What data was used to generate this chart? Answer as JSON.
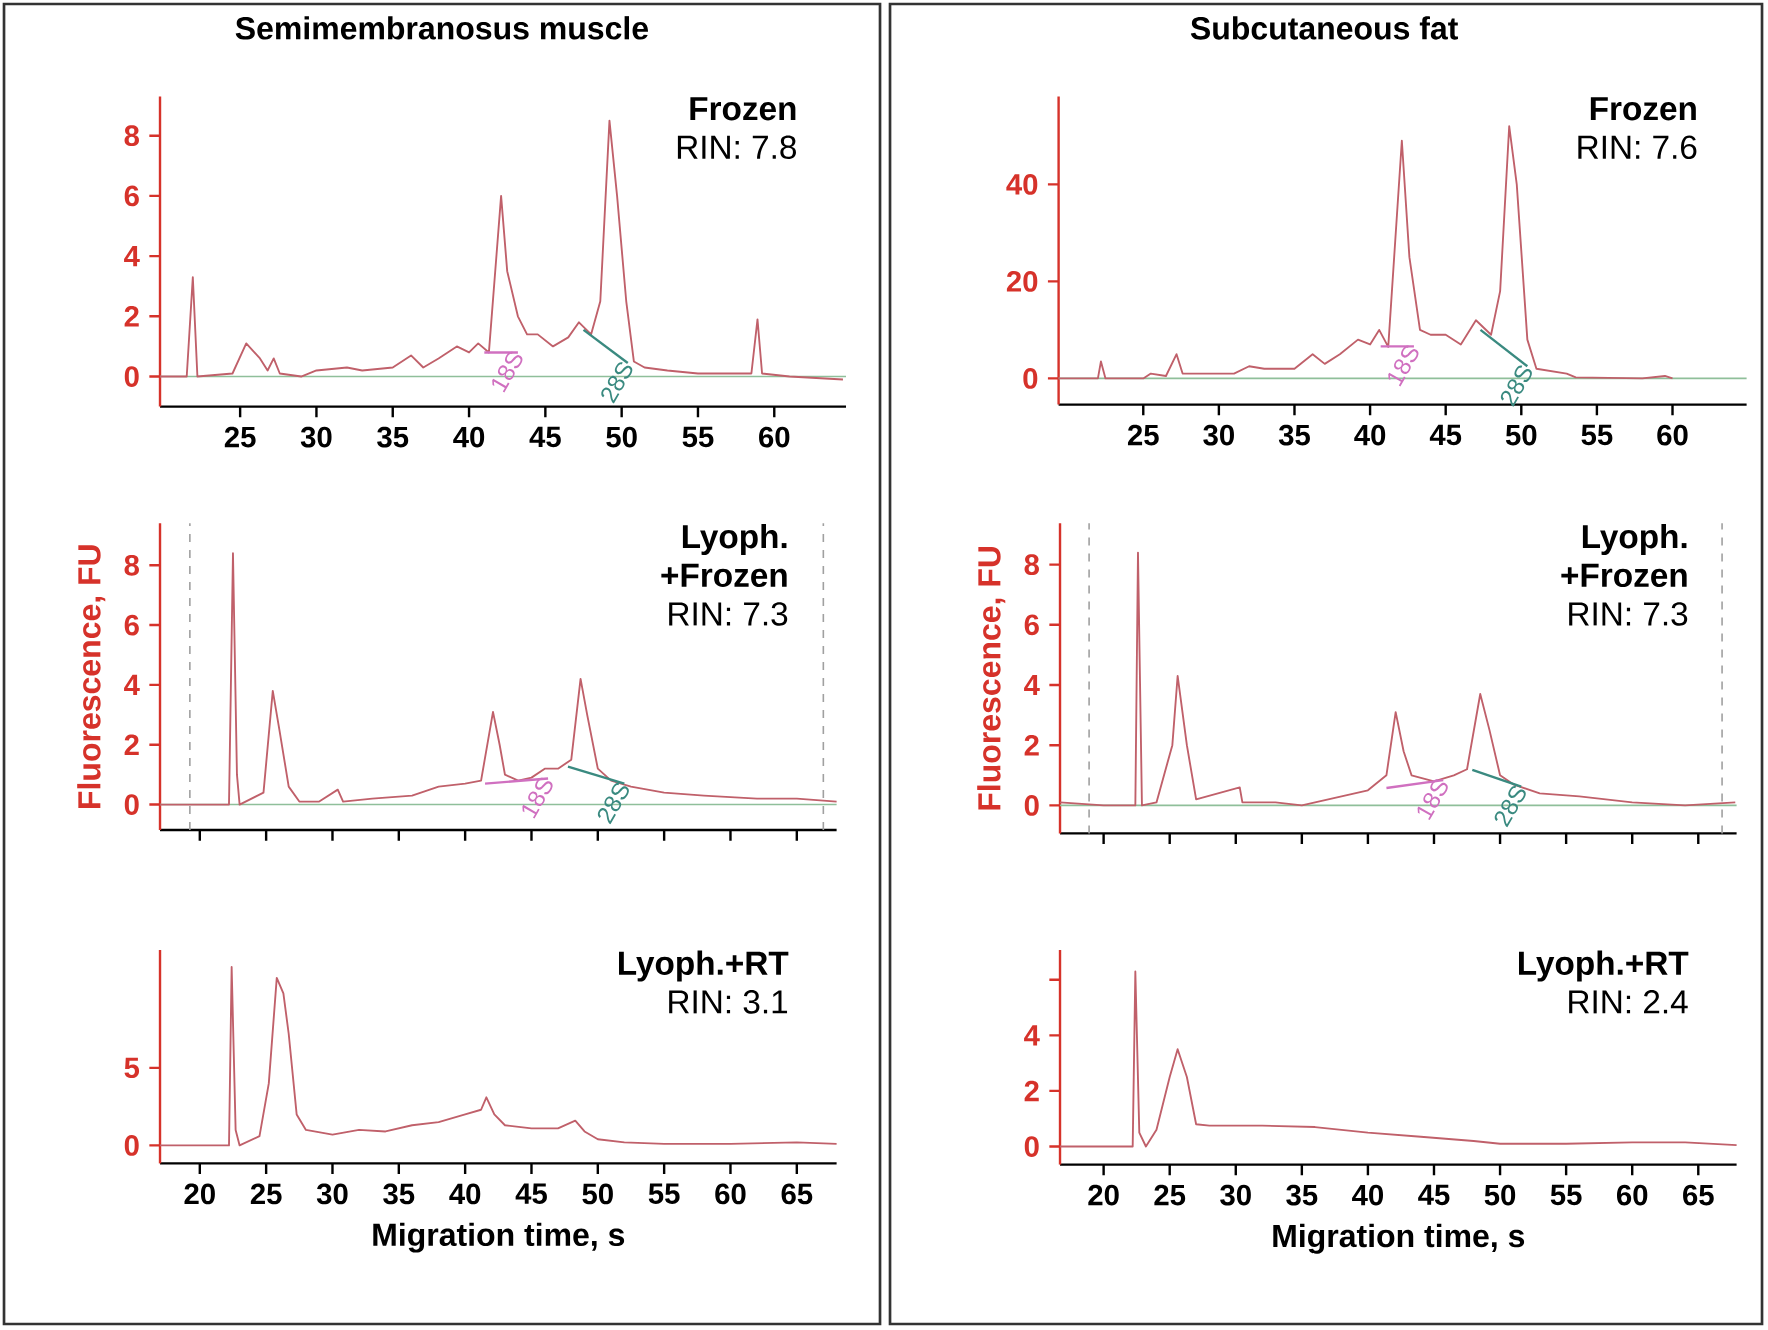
{
  "chart_data": [
    {
      "type": "line",
      "title": "Semimembranosus muscle",
      "annotations": [
        "Frozen",
        "RIN: 7.8",
        {
          "text": "18S",
          "x": 43.2,
          "y": 0.8
        },
        {
          "text": "28S",
          "x": 50.4,
          "y": 0.45
        }
      ],
      "xlim": [
        19.75,
        64.7
      ],
      "ylim": [
        -1,
        9.3
      ],
      "xticks": [
        25,
        30,
        35,
        40,
        45,
        50,
        55,
        60
      ],
      "yticks": [
        0,
        2,
        4,
        6,
        8
      ],
      "ref_lines": [
        {
          "axis": "y",
          "value": 0,
          "color": "#8fbf9a"
        }
      ],
      "series": [
        {
          "color": "#c0606a",
          "x": [
            19.75,
            21.5,
            21.9,
            22.2,
            24.5,
            25.4,
            26.3,
            26.8,
            27.2,
            27.6,
            29,
            30,
            32,
            33,
            35,
            36.2,
            37,
            38,
            39.2,
            40,
            40.6,
            41.3,
            42.1,
            42.5,
            43.2,
            43.8,
            44.5,
            45.5,
            46.5,
            47.2,
            48,
            48.6,
            49.2,
            49.7,
            50.3,
            50.8,
            51.5,
            53,
            55,
            57,
            58.5,
            58.9,
            59.2,
            61,
            64.5
          ],
          "values": [
            0,
            0,
            3.3,
            0,
            0.1,
            1.1,
            0.6,
            0.2,
            0.6,
            0.1,
            0,
            0.2,
            0.3,
            0.2,
            0.3,
            0.7,
            0.3,
            0.6,
            1.0,
            0.8,
            1.1,
            0.8,
            6.0,
            3.5,
            2.0,
            1.4,
            1.4,
            1.0,
            1.3,
            1.8,
            1.4,
            2.5,
            8.5,
            6.0,
            2.5,
            0.5,
            0.3,
            0.2,
            0.1,
            0.1,
            0.1,
            1.9,
            0.1,
            0,
            -0.1
          ]
        },
        {
          "color": "#d070c0",
          "x": [
            41,
            43.2
          ],
          "values": [
            0.8,
            0.8
          ]
        },
        {
          "color": "#3a8a80",
          "x": [
            47.5,
            50.4
          ],
          "values": [
            1.55,
            0.45
          ]
        }
      ]
    },
    {
      "type": "line",
      "title": "Subcutaneous fat",
      "annotations": [
        "Frozen",
        "RIN: 7.6",
        {
          "text": "18S",
          "x": 42.9,
          "y": 6.6
        },
        {
          "text": "28S",
          "x": 50.4,
          "y": 2.5
        }
      ],
      "xlim": [
        19.4,
        64.9
      ],
      "ylim": [
        -5.4,
        58.1
      ],
      "xticks": [
        25,
        30,
        35,
        40,
        45,
        50,
        55,
        60
      ],
      "yticks": [
        0,
        20,
        40
      ],
      "ref_lines": [
        {
          "axis": "y",
          "value": 0,
          "color": "#8fbf9a"
        }
      ],
      "series": [
        {
          "color": "#c0606a",
          "x": [
            19.4,
            22,
            22.2,
            22.5,
            25,
            25.5,
            26.5,
            27.2,
            27.6,
            29,
            31,
            32,
            33,
            35,
            36.2,
            37,
            38,
            39.2,
            40,
            40.6,
            41.2,
            42.1,
            42.6,
            43.3,
            44,
            45,
            46,
            47,
            48,
            48.6,
            49.2,
            49.7,
            50.4,
            51,
            53,
            53.6,
            58,
            59.5,
            60
          ],
          "values": [
            0,
            0,
            3.5,
            0,
            0,
            1,
            0.5,
            5,
            1,
            1,
            1,
            2.5,
            2,
            2,
            5,
            3,
            5,
            8,
            7,
            10,
            6.5,
            49,
            25,
            10,
            9,
            9,
            7,
            12,
            9,
            18,
            52,
            40,
            8,
            2,
            1,
            0.2,
            0,
            0.5,
            0
          ]
        },
        {
          "color": "#d070c0",
          "x": [
            40.7,
            42.9
          ],
          "values": [
            6.6,
            6.6
          ]
        },
        {
          "color": "#3a8a80",
          "x": [
            47.3,
            50.4
          ],
          "values": [
            10,
            2.5
          ]
        }
      ]
    },
    {
      "type": "line",
      "ylabel": "Fluorescence, FU",
      "annotations": [
        "Lyoph.",
        "+Frozen",
        "RIN: 7.3",
        {
          "text": "18S",
          "x": 46.25,
          "y": 0.87
        },
        {
          "text": "28S",
          "x": 52,
          "y": 0.7
        }
      ],
      "xlim": [
        17,
        68
      ],
      "ylim": [
        -0.85,
        9.4
      ],
      "xticks": [
        {
          "value": 20,
          "label": null
        },
        {
          "value": 25,
          "label": null
        },
        {
          "value": 30,
          "label": null
        },
        {
          "value": 35,
          "label": null
        },
        {
          "value": 40,
          "label": null
        },
        {
          "value": 45,
          "label": null
        },
        {
          "value": 50,
          "label": null
        },
        {
          "value": 55,
          "label": null
        },
        {
          "value": 60,
          "label": null
        },
        {
          "value": 65,
          "label": null
        }
      ],
      "yticks": [
        0,
        2,
        4,
        6,
        8
      ],
      "tick_labels": "y",
      "ref_lines": [
        {
          "axis": "y",
          "value": 0,
          "color": "#8fbf9a"
        },
        {
          "axis": "x",
          "value": 19.25,
          "color": "#a0a0a0",
          "line_style": "dashed"
        },
        {
          "axis": "x",
          "value": 67.0,
          "color": "#a0a0a0",
          "line_style": "dashed"
        }
      ],
      "series": [
        {
          "color": "#c0606a",
          "x": [
            17,
            20,
            22.2,
            22.5,
            22.8,
            23,
            24.8,
            25.5,
            26,
            26.7,
            27.5,
            29,
            30.4,
            30.8,
            33,
            36,
            38,
            40,
            41.2,
            42.1,
            42.6,
            43,
            44,
            45,
            46,
            47,
            48,
            48.7,
            49.2,
            50,
            51,
            52.5,
            55,
            58,
            62,
            65,
            68
          ],
          "values": [
            0,
            0,
            0,
            8.4,
            1,
            0,
            0.4,
            3.8,
            2.5,
            0.6,
            0.1,
            0.1,
            0.5,
            0.1,
            0.2,
            0.3,
            0.6,
            0.7,
            0.8,
            3.1,
            2.0,
            1.0,
            0.8,
            0.9,
            1.2,
            1.2,
            1.5,
            4.2,
            3.0,
            1.2,
            0.8,
            0.6,
            0.4,
            0.3,
            0.2,
            0.2,
            0.1
          ]
        },
        {
          "color": "#d070c0",
          "x": [
            41.5,
            46.25
          ],
          "values": [
            0.7,
            0.87
          ]
        },
        {
          "color": "#3a8a80",
          "x": [
            47.75,
            52
          ],
          "values": [
            1.27,
            0.7
          ]
        }
      ]
    },
    {
      "type": "line",
      "ylabel": "Fluorescence, FU",
      "annotations": [
        "Lyoph.",
        "+Frozen",
        "RIN: 7.3",
        {
          "text": "18S",
          "x": 45.7,
          "y": 0.84
        },
        {
          "text": "28S",
          "x": 51.6,
          "y": 0.62
        }
      ],
      "xlim": [
        16.7,
        67.9
      ],
      "ylim": [
        -0.93,
        9.37
      ],
      "xticks": [
        {
          "value": 20,
          "label": null
        },
        {
          "value": 25,
          "label": null
        },
        {
          "value": 30,
          "label": null
        },
        {
          "value": 35,
          "label": null
        },
        {
          "value": 40,
          "label": null
        },
        {
          "value": 45,
          "label": null
        },
        {
          "value": 50,
          "label": null
        },
        {
          "value": 55,
          "label": null
        },
        {
          "value": 60,
          "label": null
        },
        {
          "value": 65,
          "label": null
        }
      ],
      "yticks": [
        0,
        2,
        4,
        6,
        8
      ],
      "tick_labels": "y",
      "ref_lines": [
        {
          "axis": "y",
          "value": 0,
          "color": "#8fbf9a"
        },
        {
          "axis": "x",
          "value": 18.9,
          "color": "#a0a0a0",
          "line_style": "dashed"
        },
        {
          "axis": "x",
          "value": 66.8,
          "color": "#a0a0a0",
          "line_style": "dashed"
        }
      ],
      "series": [
        {
          "color": "#c0606a",
          "x": [
            16.7,
            20,
            22,
            22.4,
            22.6,
            22.9,
            24,
            25.2,
            25.6,
            26.3,
            27,
            30.3,
            30.5,
            33,
            35,
            38,
            40,
            41.4,
            42.1,
            42.7,
            43.3,
            45,
            46.5,
            47.5,
            48.5,
            49.2,
            50,
            51,
            53,
            56,
            60,
            64,
            67.8
          ],
          "values": [
            0.1,
            0,
            0,
            0,
            8.4,
            0,
            0.1,
            2,
            4.3,
            2,
            0.2,
            0.6,
            0.1,
            0.1,
            0,
            0.3,
            0.5,
            1,
            3.1,
            1.8,
            1,
            0.8,
            1.0,
            1.2,
            3.7,
            2.5,
            1.0,
            0.7,
            0.4,
            0.3,
            0.1,
            0,
            0.1
          ]
        },
        {
          "color": "#d070c0",
          "x": [
            41.4,
            45.7
          ],
          "values": [
            0.58,
            0.84
          ]
        },
        {
          "color": "#3a8a80",
          "x": [
            47.9,
            51.6
          ],
          "values": [
            1.18,
            0.62
          ]
        }
      ]
    },
    {
      "type": "line",
      "xlabel": "Migration time, s",
      "annotations": [
        "Lyoph.+RT",
        "RIN: 3.1"
      ],
      "xlim": [
        17,
        68
      ],
      "ylim": [
        -1.16,
        12.6
      ],
      "xticks": [
        20,
        25,
        30,
        35,
        40,
        45,
        50,
        55,
        60,
        65
      ],
      "yticks": [
        0,
        5
      ],
      "series": [
        {
          "color": "#c0606a",
          "x": [
            17,
            22.2,
            22.4,
            22.7,
            23,
            24.5,
            25.2,
            25.8,
            26.3,
            26.7,
            27.3,
            28,
            30,
            32,
            34,
            36,
            38,
            40,
            41.2,
            41.6,
            42.2,
            43,
            45,
            47,
            48.3,
            49,
            50,
            52,
            55,
            60,
            65,
            68
          ],
          "values": [
            0,
            0,
            11.5,
            1,
            0,
            0.6,
            4,
            10.8,
            9.8,
            7.2,
            2,
            1,
            0.7,
            1.0,
            0.9,
            1.3,
            1.5,
            2.0,
            2.3,
            3.1,
            2.0,
            1.3,
            1.1,
            1.1,
            1.6,
            0.9,
            0.4,
            0.2,
            0.1,
            0.1,
            0.2,
            0.1
          ]
        }
      ]
    },
    {
      "type": "line",
      "xlabel": "Migration time, s",
      "annotations": [
        "Lyoph.+RT",
        "RIN: 2.4"
      ],
      "xlim": [
        16.7,
        67.9
      ],
      "ylim": [
        -0.65,
        7.07
      ],
      "xticks": [
        20,
        25,
        30,
        35,
        40,
        45,
        50,
        55,
        60,
        65
      ],
      "yticks": [
        0,
        2,
        4,
        {
          "value": 6,
          "label": null
        }
      ],
      "series": [
        {
          "color": "#c0606a",
          "x": [
            16.7,
            22.2,
            22.4,
            22.7,
            23.2,
            24,
            25,
            25.6,
            26.3,
            27,
            28,
            32,
            36,
            40,
            44,
            48,
            50,
            55,
            60,
            64,
            67.9
          ],
          "values": [
            0,
            0,
            6.3,
            0.5,
            0,
            0.6,
            2.5,
            3.5,
            2.5,
            0.8,
            0.75,
            0.75,
            0.7,
            0.5,
            0.35,
            0.2,
            0.1,
            0.1,
            0.15,
            0.15,
            0.05
          ]
        }
      ]
    }
  ]
}
